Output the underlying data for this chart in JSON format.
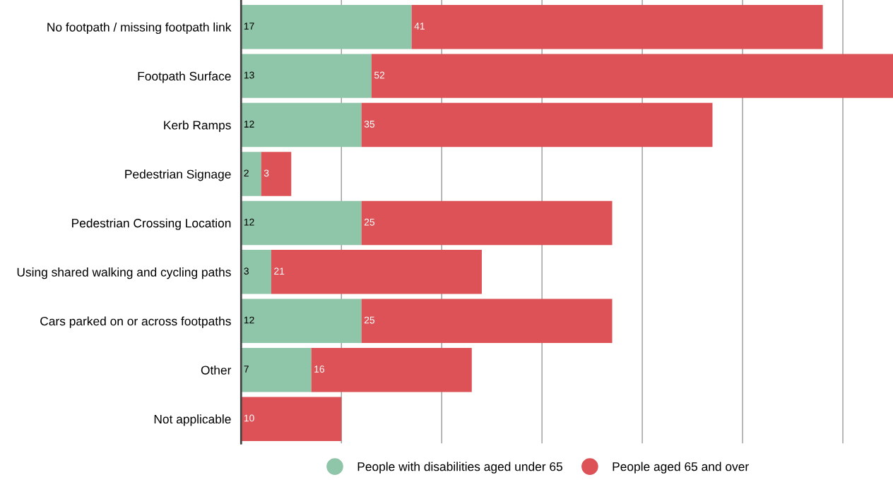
{
  "chart_data": {
    "type": "bar",
    "orientation": "horizontal",
    "stacked": true,
    "categories": [
      "No footpath / missing footpath link",
      "Footpath Surface",
      "Kerb Ramps",
      "Pedestrian Signage",
      "Pedestrian Crossing Location",
      "Using shared walking and cycling paths",
      "Cars parked on or across footpaths",
      "Other",
      "Not applicable"
    ],
    "series": [
      {
        "name": "People with disabilities aged under 65",
        "color": "#8fc5a8",
        "values": [
          17,
          13,
          12,
          2,
          12,
          3,
          12,
          7,
          0
        ],
        "value_labels": [
          "17",
          "13",
          "12",
          "2",
          "12",
          "3",
          "12",
          "7",
          null
        ]
      },
      {
        "name": "People aged 65 and over",
        "color": "#dc5257",
        "values": [
          41,
          52,
          35,
          3,
          25,
          21,
          25,
          16,
          10
        ],
        "value_labels": [
          "41",
          "52",
          "35",
          "3",
          "25",
          "21",
          "25",
          "16",
          "10"
        ]
      }
    ],
    "xlim": [
      0,
      65
    ],
    "xticks": [
      {
        "value": 0,
        "label": null
      },
      {
        "value": 10,
        "label": null
      },
      {
        "value": 20,
        "label": null
      },
      {
        "value": 30,
        "label": null
      },
      {
        "value": 40,
        "label": null
      },
      {
        "value": 50,
        "label": null
      },
      {
        "value": 60,
        "label": null
      }
    ],
    "tick_labels": "y",
    "grid": "x",
    "legend": "bottom"
  }
}
